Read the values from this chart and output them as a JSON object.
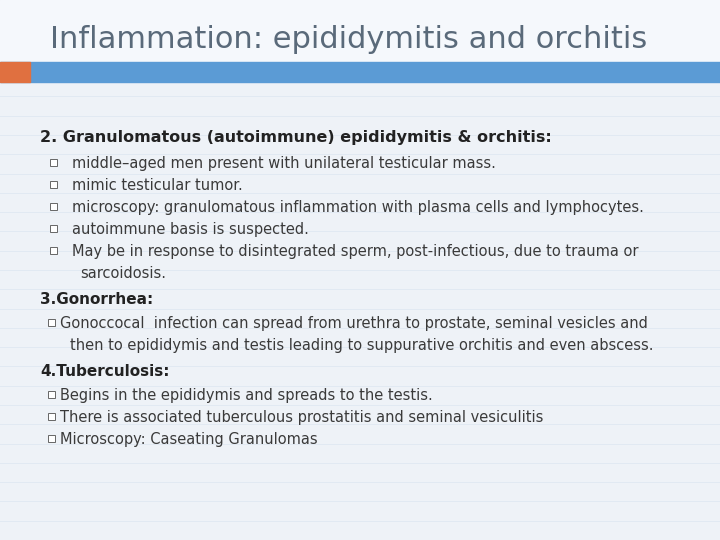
{
  "title": "Inflammation: epididymitis and orchitis",
  "title_color": "#5a6a7a",
  "title_fontsize": 22,
  "bg_color": "#eef2f7",
  "stripe_color": "#dce6f0",
  "header_bar_color": "#5b9bd5",
  "header_bar_orange": "#e07040",
  "section2_bold": "2. Granulomatous (autoimmune) epididymitis & orchitis:",
  "bullets2": [
    "middle–aged men present with unilateral testicular mass.",
    "mimic testicular tumor.",
    "microscopy: granulomatous inflammation with plasma cells and lymphocytes.",
    "autoimmune basis is suspected.",
    "May be in response to disintegrated sperm, post-infectious, due to trauma or\n     sarcoidosis."
  ],
  "section3_bold": "3.Gonorrhea:",
  "bullet3_line1": "Gonoccocal  infection can spread from urethra to prostate, seminal vesicles and",
  "bullet3_line2": "  then to epididymis and testis leading to suppurative orchitis and even abscess.",
  "section4_bold": "4.Tuberculosis:",
  "bullets4": [
    "Begins in the epididymis and spreads to the testis.",
    "There is associated tuberculous prostatitis and seminal vesiculitis",
    "Microscopy: Caseating Granulomas"
  ],
  "text_color": "#3a3a3a",
  "bold_color": "#222222",
  "body_fontsize": 10.5,
  "bold_fontsize": 11,
  "section_bold_fontsize": 11.5
}
